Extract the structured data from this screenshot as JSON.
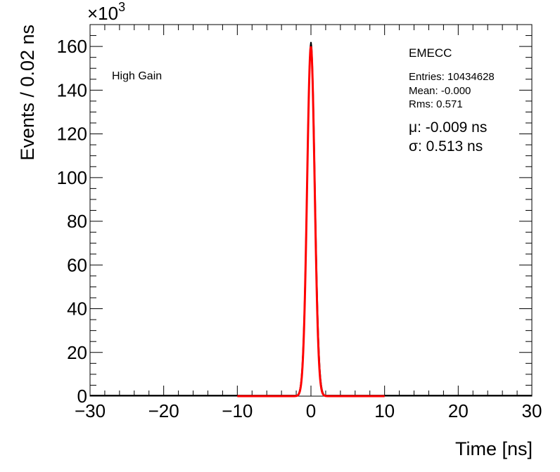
{
  "chart_data": {
    "type": "histogram",
    "xlabel": "Time [ns]",
    "ylabel": "Events / 0.02 ns",
    "xlim": [
      -30,
      30
    ],
    "ylim": [
      0,
      170
    ],
    "y_multiplier": "×10",
    "y_multiplier_exp": "3",
    "x_ticks": [
      "−30",
      "−20",
      "−10",
      "0",
      "10",
      "20",
      "30"
    ],
    "y_ticks": [
      "0",
      "20",
      "40",
      "60",
      "80",
      "100",
      "120",
      "140",
      "160"
    ],
    "label": "High Gain",
    "stats": {
      "title": "EMECC",
      "entries": "Entries: 10434628",
      "mean": "Mean: -0.000",
      "rms": "Rms: 0.571",
      "fit_mu": "μ: -0.009 ns",
      "fit_sigma": "σ: 0.513 ns"
    },
    "series": [
      {
        "name": "",
        "kind": "histogram",
        "color": "#000000",
        "peak_x": 0.0,
        "peak_y": 162,
        "tail_sigma": 0.57,
        "x_range": [
          -30,
          30
        ]
      },
      {
        "name": "",
        "kind": "gaussian-fit",
        "color": "#ff0000",
        "mu": -0.009,
        "sigma": 0.513,
        "amplitude": 160,
        "x_range": [
          -10,
          10
        ]
      }
    ]
  }
}
